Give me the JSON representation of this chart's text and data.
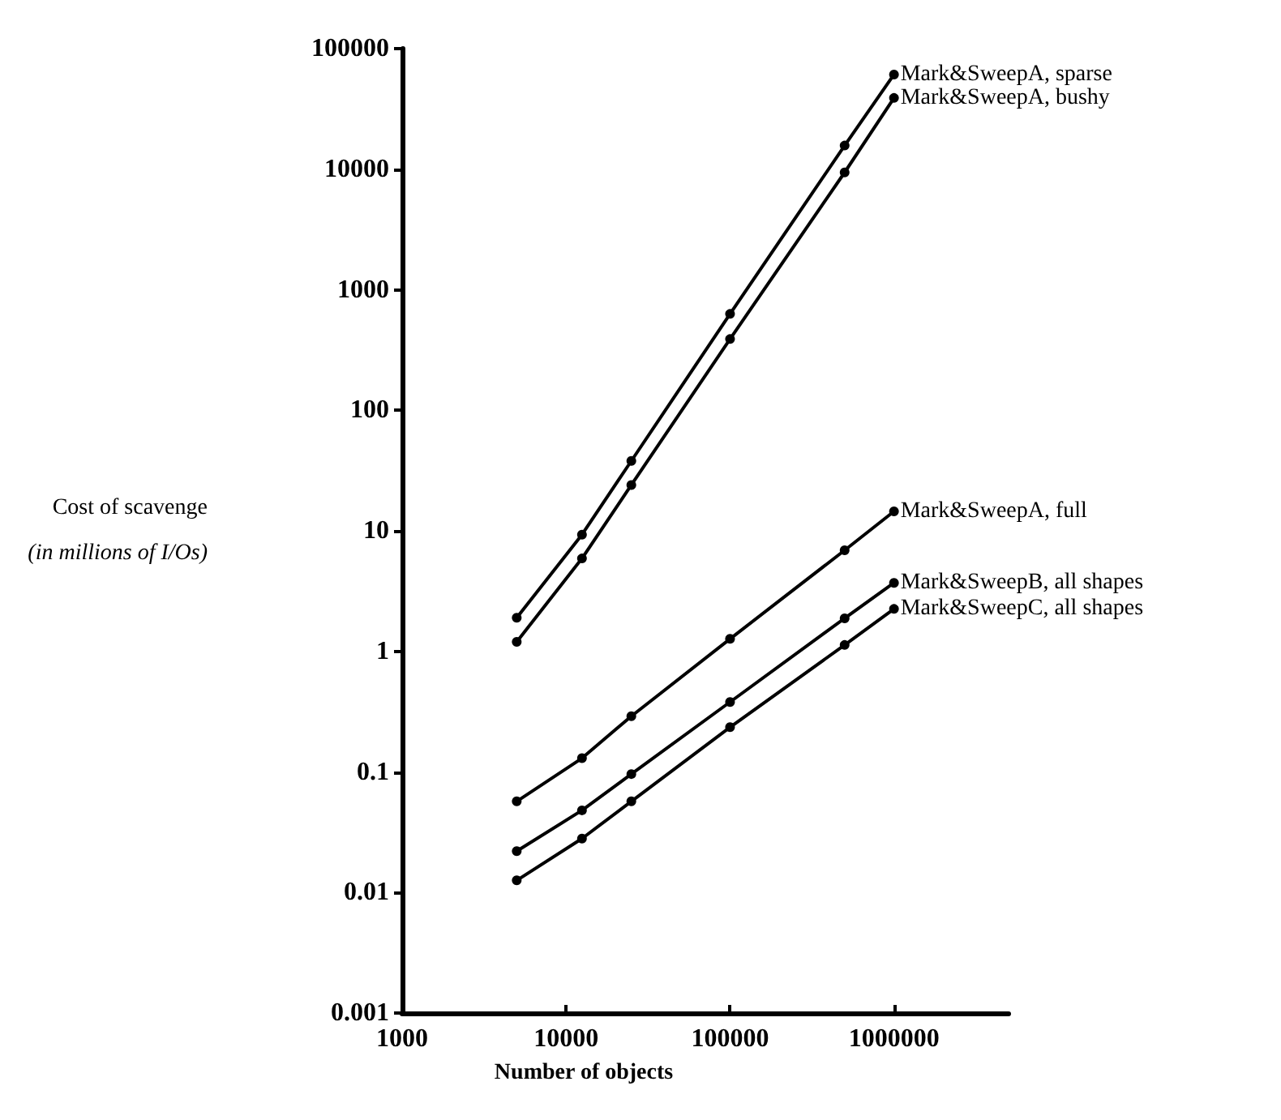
{
  "chart_data": {
    "type": "line",
    "xlabel": "Number of objects",
    "ylabel": "Cost of scavenge\n(in millions of I/Os)",
    "x": [
      5000,
      12500,
      25000,
      100000,
      500000,
      1000000
    ],
    "series": [
      {
        "name": "Mark&SweepA, sparse",
        "color": "#000000",
        "values": [
          1.9,
          9.3,
          38,
          630,
          15700,
          61000
        ]
      },
      {
        "name": "Mark&SweepA, bushy",
        "color": "#000000",
        "values": [
          1.2,
          5.9,
          24,
          390,
          9400,
          39000
        ]
      },
      {
        "name": "Mark&SweepA, full",
        "color": "#000000",
        "values": [
          0.057,
          0.13,
          0.29,
          1.27,
          6.9,
          14.5
        ]
      },
      {
        "name": "Mark&SweepB, all shapes",
        "color": "#000000",
        "values": [
          0.022,
          0.048,
          0.096,
          0.38,
          1.88,
          3.7
        ]
      },
      {
        "name": "Mark&SweepC, all shapes",
        "color": "#000000",
        "values": [
          0.0126,
          0.028,
          0.057,
          0.235,
          1.13,
          2.25
        ]
      }
    ],
    "xlim": [
      1000,
      5000000
    ],
    "xticks": [
      1000,
      10000,
      100000,
      1000000
    ],
    "ylim": [
      0.001,
      100000
    ],
    "yticks": [
      0.001,
      0.01,
      0.1,
      1,
      10,
      100,
      1000,
      10000,
      100000
    ],
    "log": "xy",
    "grid": false,
    "legend": false,
    "marker": "circle",
    "line_style": "solid"
  }
}
